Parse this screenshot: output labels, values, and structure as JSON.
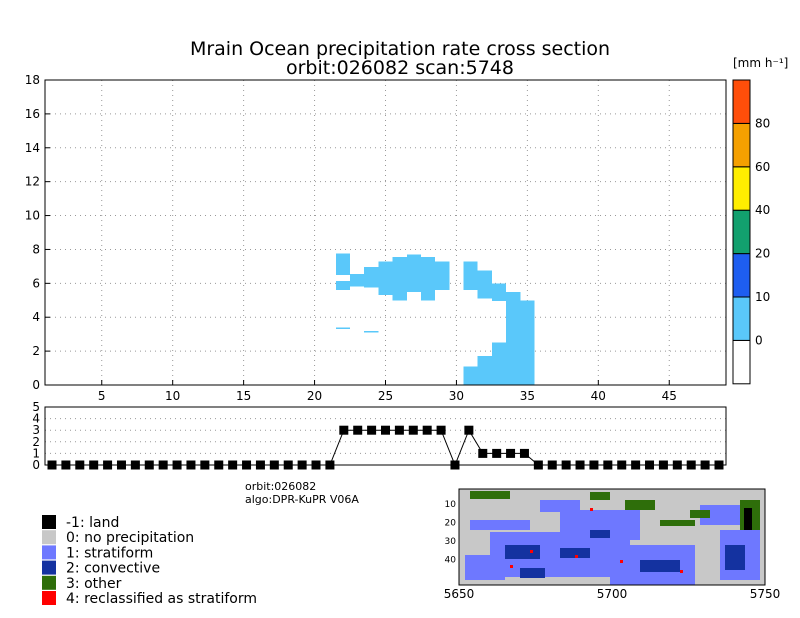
{
  "title_line1": "Mrain Ocean precipitation rate cross section",
  "title_line2": "orbit:026082    scan:5748",
  "unit_label": "[mm h⁻¹]",
  "info_orbit": "orbit:026082",
  "info_algo": "algo:DPR-KuPR V06A",
  "colors": {
    "rain": "#5ac8fa",
    "bins": [
      "#ffffff",
      "#5ac8fa",
      "#1e5ef0",
      "#12a06e",
      "#ffee00",
      "#f5a000",
      "#ff4e0a"
    ],
    "classes": {
      "land": "#000000",
      "none": "#c8c8c8",
      "stratiform": "#6e78ff",
      "convective": "#1432a0",
      "other": "#2e6e0a",
      "reclass": "#ff0000"
    }
  },
  "chart_data": [
    {
      "type": "heatmap",
      "name": "precipitation-cross-section",
      "xlim": [
        1,
        49
      ],
      "ylim": [
        0,
        18
      ],
      "xticks": [
        5,
        10,
        15,
        20,
        25,
        30,
        35,
        40,
        45
      ],
      "yticks": [
        0,
        2,
        4,
        6,
        8,
        10,
        12,
        14,
        16,
        18
      ],
      "grid": true,
      "colorbar": {
        "boundaries": [
          0,
          10,
          20,
          40,
          60,
          80
        ],
        "labels": [
          "0",
          "10",
          "20",
          "40",
          "60",
          "80"
        ]
      },
      "columns": [
        {
          "x": 22,
          "segments": [
            [
              6.5,
              7.75
            ],
            [
              5.6,
              6.15
            ],
            [
              3.3,
              3.4
            ]
          ]
        },
        {
          "x": 23,
          "segments": [
            [
              5.8,
              6.55
            ]
          ]
        },
        {
          "x": 24,
          "segments": [
            [
              5.75,
              6.95
            ],
            [
              3.1,
              3.2
            ]
          ]
        },
        {
          "x": 25,
          "segments": [
            [
              5.3,
              7.3
            ]
          ]
        },
        {
          "x": 26,
          "segments": [
            [
              5.0,
              7.55
            ]
          ]
        },
        {
          "x": 27,
          "segments": [
            [
              5.5,
              7.7
            ]
          ]
        },
        {
          "x": 28,
          "segments": [
            [
              5.0,
              7.55
            ]
          ]
        },
        {
          "x": 29,
          "segments": [
            [
              5.6,
              6.95
            ],
            [
              6.95,
              7.3
            ]
          ]
        },
        {
          "x": 31,
          "segments": [
            [
              0,
              1.1
            ],
            [
              5.6,
              7.3
            ]
          ]
        },
        {
          "x": 32,
          "segments": [
            [
              0,
              1.7
            ],
            [
              5.1,
              6.75
            ]
          ]
        },
        {
          "x": 33,
          "segments": [
            [
              0,
              2.5
            ],
            [
              4.95,
              6.0
            ]
          ]
        },
        {
          "x": 34,
          "segments": [
            [
              0,
              5.5
            ]
          ]
        },
        {
          "x": 35,
          "segments": [
            [
              0,
              5.0
            ]
          ]
        }
      ]
    },
    {
      "type": "line",
      "name": "rain-type-profile",
      "xlim": [
        1,
        49
      ],
      "ylim": [
        0,
        5
      ],
      "yticks": [
        0,
        1,
        2,
        3,
        4,
        5
      ],
      "x": [
        1,
        2,
        3,
        4,
        5,
        6,
        7,
        8,
        9,
        10,
        11,
        12,
        13,
        14,
        15,
        16,
        17,
        18,
        19,
        20,
        21,
        22,
        23,
        24,
        25,
        26,
        27,
        28,
        29,
        30,
        31,
        32,
        33,
        34,
        35,
        36,
        37,
        38,
        39,
        40,
        41,
        42,
        43,
        44,
        45,
        46,
        47,
        48,
        49
      ],
      "values": [
        0,
        0,
        0,
        0,
        0,
        0,
        0,
        0,
        0,
        0,
        0,
        0,
        0,
        0,
        0,
        0,
        0,
        0,
        0,
        0,
        0,
        3,
        3,
        3,
        3,
        3,
        3,
        3,
        3,
        0,
        3,
        1,
        1,
        1,
        1,
        0,
        0,
        0,
        0,
        0,
        0,
        0,
        0,
        0,
        0,
        0,
        0,
        0,
        0
      ]
    },
    {
      "type": "heatmap",
      "name": "rain-type-map",
      "xlim": [
        5650,
        5750
      ],
      "xticks": [
        5650,
        5700,
        5750
      ],
      "ylim": [
        0,
        49
      ],
      "yticks": [
        10,
        20,
        30,
        40
      ]
    }
  ],
  "legend": [
    {
      "code": "-1",
      "label": "land",
      "color": "#000000"
    },
    {
      "code": "0",
      "label": "no precipitation",
      "color": "#c8c8c8"
    },
    {
      "code": "1",
      "label": "stratiform",
      "color": "#6e78ff"
    },
    {
      "code": "2",
      "label": "convective",
      "color": "#1432a0"
    },
    {
      "code": "3",
      "label": "other",
      "color": "#2e6e0a"
    },
    {
      "code": "4",
      "label": "reclassified as stratiform",
      "color": "#ff0000"
    }
  ]
}
